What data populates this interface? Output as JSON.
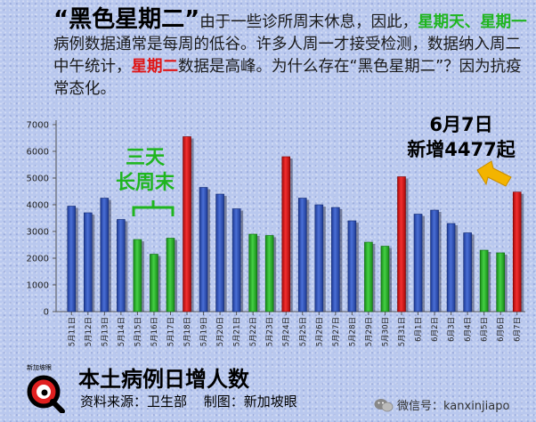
{
  "intro": {
    "headline": "“黑色星期二”",
    "p1": "由于一些诊所周末休息，因此，",
    "sunday": "星期天、",
    "monday": "星期一",
    "p2": "病例数据通常是每周的低谷。许多人周一才接受检测，数据纳入周二中午统计，",
    "tuesday": "星期二",
    "p3": "数据是高峰。为什么存在“黑色星期二”？因为抗疫常态化。"
  },
  "annotations": {
    "long_weekend_line1": "三天",
    "long_weekend_line2": "长周末",
    "latest_line1": "6月7日",
    "latest_line2": "新增4477起"
  },
  "footer": {
    "title": "本土病例日增人数",
    "source": "资料来源：卫生部",
    "producer": "制图：新加坡眼",
    "wechat": "微信号：kanxinjiapo",
    "logo_text": "新加坡眼"
  },
  "colors": {
    "weekday": "#2f51b5",
    "weekend": "#25b325",
    "tuesday": "#e01010",
    "annotation_green": "#1fb51f",
    "arrow": "#f3b400"
  },
  "chart_data": {
    "type": "bar",
    "ylim": [
      0,
      7000
    ],
    "yticks": [
      0,
      1000,
      2000,
      3000,
      4000,
      5000,
      6000,
      7000
    ],
    "grid": false,
    "categories": [
      "5月11日",
      "5月12日",
      "5月13日",
      "5月14日",
      "5月15日",
      "5月16日",
      "5月17日",
      "5月18日",
      "5月19日",
      "5月20日",
      "5月21日",
      "5月22日",
      "5月23日",
      "5月24日",
      "5月25日",
      "5月26日",
      "5月27日",
      "5月28日",
      "5月29日",
      "5月30日",
      "5月31日",
      "6月1日",
      "6月2日",
      "6月3日",
      "6月4日",
      "6月5日",
      "6月6日",
      "6月7日"
    ],
    "values": [
      3950,
      3700,
      4250,
      3450,
      2700,
      2150,
      2750,
      6550,
      4650,
      4400,
      3850,
      2900,
      2850,
      5800,
      4250,
      4000,
      3900,
      3400,
      2600,
      2450,
      5050,
      3650,
      3800,
      3300,
      2950,
      2300,
      2200,
      4477
    ],
    "day_types": [
      "weekday",
      "weekday",
      "weekday",
      "weekday",
      "weekend",
      "weekend",
      "weekend",
      "tuesday",
      "weekday",
      "weekday",
      "weekday",
      "weekend",
      "weekend",
      "tuesday",
      "weekday",
      "weekday",
      "weekday",
      "weekday",
      "weekend",
      "weekend",
      "tuesday",
      "weekday",
      "weekday",
      "weekday",
      "weekday",
      "weekend",
      "weekend",
      "tuesday"
    ]
  }
}
